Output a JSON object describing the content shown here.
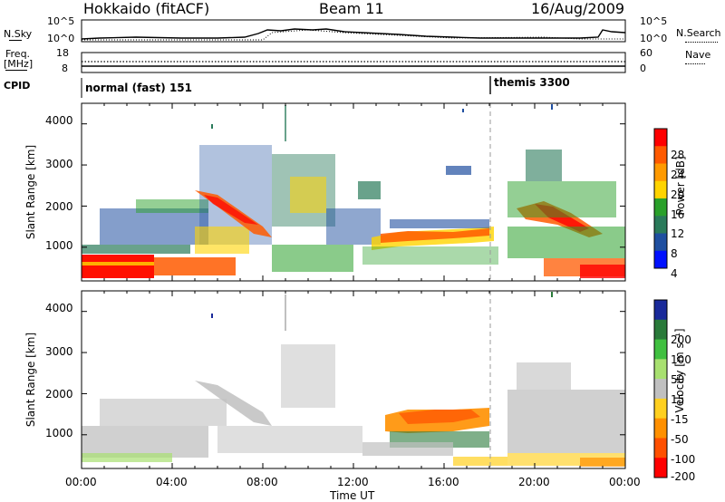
{
  "header": {
    "left_title": "Hokkaido (fitACF)",
    "center_title": "Beam 11",
    "right_title": "16/Aug/2009"
  },
  "top_panel": {
    "nsky_label": "N.Sky",
    "nsky_ticks": [
      "10^5",
      "10^0"
    ],
    "nsearch_label": "N.Search",
    "nsearch_ticks": [
      "10^5",
      "10^0"
    ],
    "freq_label_line1": "Freq.",
    "freq_label_line2": "[MHz]",
    "freq_ticks": [
      "18",
      "8"
    ],
    "nave_label": "Nave",
    "nave_ticks": [
      "60",
      "0"
    ],
    "cpid_label": "CPID",
    "cpid_segments": [
      {
        "name": "normal (fast) 151",
        "start_hour": 0
      },
      {
        "name": "themis 3300",
        "start_hour": 18.0
      }
    ]
  },
  "power_colorbar": {
    "label": "Power [dB]",
    "ticks": [
      "28",
      "24",
      "20",
      "16",
      "12",
      "8",
      "4"
    ],
    "colors": [
      "#ff0000",
      "#ff5a00",
      "#ff9a00",
      "#ffd400",
      "#2aa02a",
      "#2a7a5a",
      "#1f4fa0",
      "#0010ff"
    ]
  },
  "velocity_colorbar": {
    "label": "Velocity [m s⁻¹]",
    "ticks": [
      "200",
      "100",
      "50",
      "15",
      "-15",
      "-50",
      "-100",
      "-200"
    ],
    "colors": [
      "#1a2a9a",
      "#2a7a3a",
      "#40c040",
      "#a8e070",
      "#c0c0c0",
      "#ffd020",
      "#ff9000",
      "#ff5000",
      "#ff0000"
    ]
  },
  "axes": {
    "ylabel": "Slant Range [km]",
    "yticks": [
      "4000",
      "3000",
      "2000",
      "1000"
    ],
    "xlabel": "Time UT",
    "xticks": [
      "00:00",
      "04:00",
      "08:00",
      "12:00",
      "16:00",
      "20:00",
      "00:00"
    ]
  },
  "chart_data": [
    {
      "type": "heatmap",
      "title": "Power",
      "xlabel": "Time UT",
      "ylabel": "Slant Range [km]",
      "xlim": [
        0,
        24
      ],
      "ylim": [
        180,
        4500
      ],
      "colorbar_label": "Power [dB]",
      "colorbar_range": [
        0,
        32
      ],
      "regions": [
        {
          "x": [
            0,
            2.2
          ],
          "y": [
            200,
            850
          ],
          "value": 29
        },
        {
          "x": [
            2.2,
            5.5
          ],
          "y": [
            250,
            650
          ],
          "value": 26
        },
        {
          "x": [
            3.5,
            7.5
          ],
          "y": [
            700,
            1800
          ],
          "value": 14
        },
        {
          "x": [
            5.3,
            8.2
          ],
          "y": [
            1500,
            2300
          ],
          "value": 22
        },
        {
          "x": [
            12.5,
            17.5
          ],
          "y": [
            700,
            1300
          ],
          "value": 22
        },
        {
          "x": [
            19.0,
            23.0
          ],
          "y": [
            1300,
            2200
          ],
          "value": 25
        },
        {
          "x": [
            20.5,
            24
          ],
          "y": [
            200,
            700
          ],
          "value": 26
        }
      ]
    },
    {
      "type": "heatmap",
      "title": "Velocity",
      "xlabel": "Time UT",
      "ylabel": "Slant Range [km]",
      "xlim": [
        0,
        24
      ],
      "ylim": [
        180,
        4500
      ],
      "colorbar_label": "Velocity [m s⁻¹]",
      "colorbar_range": [
        -200,
        200
      ],
      "regions": [
        {
          "x": [
            0,
            12
          ],
          "y": [
            300,
            2300
          ],
          "value": 0
        },
        {
          "x": [
            12.8,
            17.8
          ],
          "y": [
            1050,
            1500
          ],
          "value": -100
        },
        {
          "x": [
            13.5,
            17.5
          ],
          "y": [
            700,
            1050
          ],
          "value": 40
        },
        {
          "x": [
            18.5,
            24
          ],
          "y": [
            300,
            2200
          ],
          "value": 0
        }
      ]
    }
  ]
}
